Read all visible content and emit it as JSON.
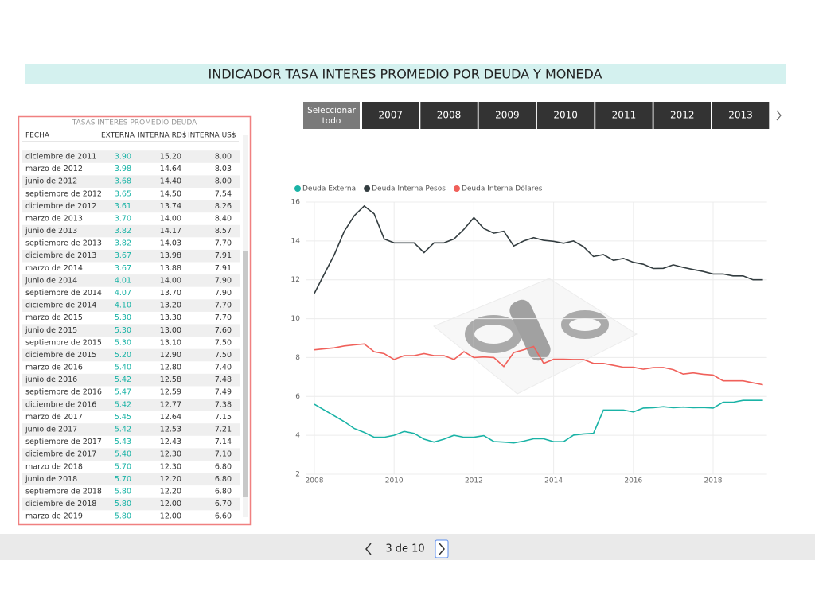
{
  "header": {
    "title": "INDICADOR TASA INTERES PROMEDIO POR DEUDA Y MONEDA"
  },
  "table": {
    "title": "TASAS INTERES PROMEDIO DEUDA",
    "columns": [
      "FECHA",
      "EXTERNA",
      "INTERNA RD$",
      "INTERNA US$"
    ],
    "rows": [
      [
        "diciembre de 2011",
        "3.90",
        "15.20",
        "8.00"
      ],
      [
        "marzo de 2012",
        "3.98",
        "14.64",
        "8.03"
      ],
      [
        "junio de 2012",
        "3.68",
        "14.40",
        "8.00"
      ],
      [
        "septiembre de 2012",
        "3.65",
        "14.50",
        "7.54"
      ],
      [
        "diciembre de 2012",
        "3.61",
        "13.74",
        "8.26"
      ],
      [
        "marzo de 2013",
        "3.70",
        "14.00",
        "8.40"
      ],
      [
        "junio de 2013",
        "3.82",
        "14.17",
        "8.57"
      ],
      [
        "septiembre de 2013",
        "3.82",
        "14.03",
        "7.70"
      ],
      [
        "diciembre de 2013",
        "3.67",
        "13.98",
        "7.91"
      ],
      [
        "marzo de 2014",
        "3.67",
        "13.88",
        "7.91"
      ],
      [
        "junio de 2014",
        "4.01",
        "14.00",
        "7.90"
      ],
      [
        "septiembre de 2014",
        "4.07",
        "13.70",
        "7.90"
      ],
      [
        "diciembre de 2014",
        "4.10",
        "13.20",
        "7.70"
      ],
      [
        "marzo de 2015",
        "5.30",
        "13.30",
        "7.70"
      ],
      [
        "junio de 2015",
        "5.30",
        "13.00",
        "7.60"
      ],
      [
        "septiembre de 2015",
        "5.30",
        "13.10",
        "7.50"
      ],
      [
        "diciembre de 2015",
        "5.20",
        "12.90",
        "7.50"
      ],
      [
        "marzo de 2016",
        "5.40",
        "12.80",
        "7.40"
      ],
      [
        "junio de 2016",
        "5.42",
        "12.58",
        "7.48"
      ],
      [
        "septiembre de 2016",
        "5.47",
        "12.59",
        "7.49"
      ],
      [
        "diciembre de 2016",
        "5.42",
        "12.77",
        "7.38"
      ],
      [
        "marzo de 2017",
        "5.45",
        "12.64",
        "7.15"
      ],
      [
        "junio de 2017",
        "5.42",
        "12.53",
        "7.21"
      ],
      [
        "septiembre de 2017",
        "5.43",
        "12.43",
        "7.14"
      ],
      [
        "diciembre de 2017",
        "5.40",
        "12.30",
        "7.10"
      ],
      [
        "marzo de 2018",
        "5.70",
        "12.30",
        "6.80"
      ],
      [
        "junio de 2018",
        "5.70",
        "12.20",
        "6.80"
      ],
      [
        "septiembre de 2018",
        "5.80",
        "12.20",
        "6.80"
      ],
      [
        "diciembre de 2018",
        "5.80",
        "12.00",
        "6.70"
      ],
      [
        "marzo de 2019",
        "5.80",
        "12.00",
        "6.60"
      ]
    ]
  },
  "slicer": {
    "items": [
      "Seleccionar todo",
      "2007",
      "2008",
      "2009",
      "2010",
      "2011",
      "2012",
      "2013"
    ]
  },
  "pager": {
    "label": "3 de 10"
  },
  "chart_data": {
    "type": "line",
    "x": [
      2008,
      2008.25,
      2008.5,
      2008.75,
      2009,
      2009.25,
      2009.5,
      2009.75,
      2010,
      2010.25,
      2010.5,
      2010.75,
      2011,
      2011.25,
      2011.5,
      2011.75,
      2012,
      2012.25,
      2012.5,
      2012.75,
      2013,
      2013.25,
      2013.5,
      2013.75,
      2014,
      2014.25,
      2014.5,
      2014.75,
      2015,
      2015.25,
      2015.5,
      2015.75,
      2016,
      2016.25,
      2016.5,
      2016.75,
      2017,
      2017.25,
      2017.5,
      2017.75,
      2018,
      2018.25,
      2018.5,
      2018.75,
      2019,
      2019.25
    ],
    "series": [
      {
        "name": "Deuda Externa",
        "color": "#1ab3a6",
        "values": [
          5.6,
          5.3,
          5.0,
          4.7,
          4.35,
          4.15,
          3.9,
          3.9,
          4.0,
          4.2,
          4.1,
          3.8,
          3.65,
          3.8,
          4.0,
          3.9,
          3.9,
          3.98,
          3.68,
          3.65,
          3.61,
          3.7,
          3.82,
          3.82,
          3.67,
          3.67,
          4.01,
          4.07,
          4.1,
          5.3,
          5.3,
          5.3,
          5.2,
          5.4,
          5.42,
          5.47,
          5.42,
          5.45,
          5.42,
          5.43,
          5.4,
          5.7,
          5.7,
          5.8,
          5.8,
          5.8
        ]
      },
      {
        "name": "Deuda Interna Pesos",
        "color": "#333d40",
        "values": [
          11.3,
          12.3,
          13.3,
          14.5,
          15.3,
          15.8,
          15.4,
          14.1,
          13.9,
          13.9,
          13.9,
          13.4,
          13.9,
          13.9,
          14.1,
          14.6,
          15.2,
          14.64,
          14.4,
          14.5,
          13.74,
          14.0,
          14.17,
          14.03,
          13.98,
          13.88,
          14.0,
          13.7,
          13.2,
          13.3,
          13.0,
          13.1,
          12.9,
          12.8,
          12.58,
          12.59,
          12.77,
          12.64,
          12.53,
          12.43,
          12.3,
          12.3,
          12.2,
          12.2,
          12.0,
          12.0
        ]
      },
      {
        "name": "Deuda Interna Dólares",
        "color": "#f0605a",
        "values": [
          8.4,
          8.45,
          8.5,
          8.6,
          8.65,
          8.7,
          8.3,
          8.2,
          7.9,
          8.1,
          8.1,
          8.2,
          8.1,
          8.1,
          7.9,
          8.3,
          8.0,
          8.03,
          8.0,
          7.54,
          8.26,
          8.4,
          8.57,
          7.7,
          7.91,
          7.91,
          7.9,
          7.9,
          7.7,
          7.7,
          7.6,
          7.5,
          7.5,
          7.4,
          7.48,
          7.49,
          7.38,
          7.15,
          7.21,
          7.14,
          7.1,
          6.8,
          6.8,
          6.8,
          6.7,
          6.6
        ]
      }
    ],
    "xlim": [
      2008,
      2019.25
    ],
    "xticks": [
      2008,
      2010,
      2012,
      2014,
      2016,
      2018
    ],
    "ylim": [
      2,
      16
    ],
    "yticks": [
      2,
      4,
      6,
      8,
      10,
      12,
      14,
      16
    ],
    "grid": true
  }
}
